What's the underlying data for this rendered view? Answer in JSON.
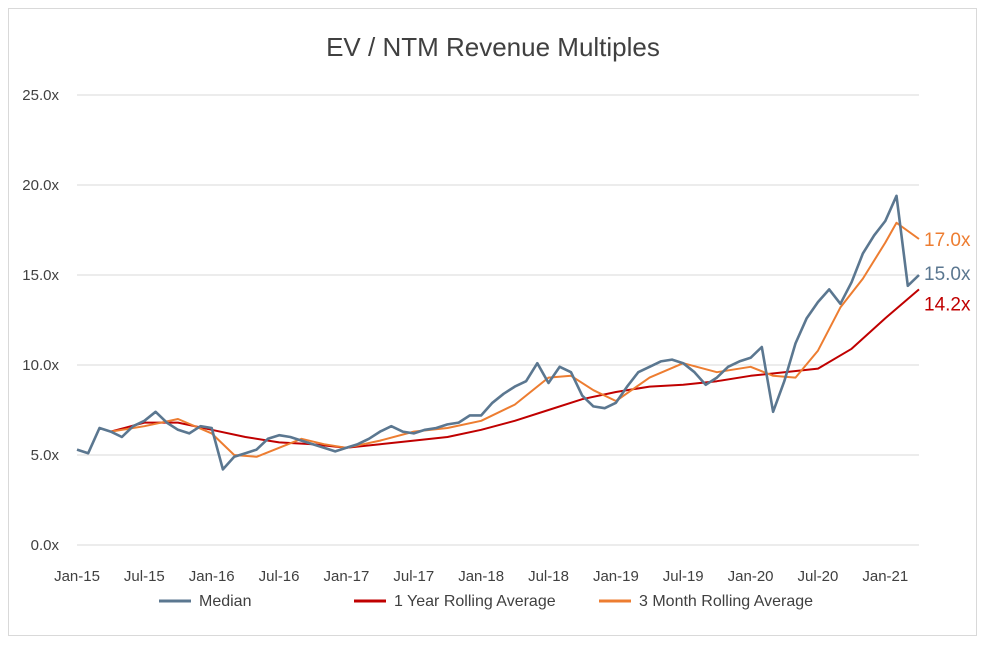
{
  "chart_data": {
    "type": "line",
    "title": "EV / NTM Revenue Multiples",
    "xlabel": "",
    "ylabel": "",
    "ylim": [
      0,
      25
    ],
    "yticks": [
      "0.0x",
      "5.0x",
      "10.0x",
      "15.0x",
      "20.0x",
      "25.0x"
    ],
    "ytick_values": [
      0,
      5,
      10,
      15,
      20,
      25
    ],
    "xticks": [
      "Jan-15",
      "Jul-15",
      "Jan-16",
      "Jul-16",
      "Jan-17",
      "Jul-17",
      "Jan-18",
      "Jul-18",
      "Jan-19",
      "Jul-19",
      "Jan-20",
      "Jul-20",
      "Jan-21"
    ],
    "xtick_dates": [
      "2015-01",
      "2015-07",
      "2016-01",
      "2016-07",
      "2017-01",
      "2017-07",
      "2018-01",
      "2018-07",
      "2019-01",
      "2019-07",
      "2020-01",
      "2020-07",
      "2021-01"
    ],
    "xlim": [
      "2015-01",
      "2021-04"
    ],
    "grid": "horizontal",
    "legend_position": "bottom",
    "series": [
      {
        "name": "Median",
        "color": "#5b7790",
        "end_label": "15.0x",
        "points": [
          [
            "2015-01",
            5.3
          ],
          [
            "2015-02",
            5.1
          ],
          [
            "2015-03",
            6.5
          ],
          [
            "2015-04",
            6.3
          ],
          [
            "2015-05",
            6.0
          ],
          [
            "2015-06",
            6.6
          ],
          [
            "2015-07",
            6.9
          ],
          [
            "2015-08",
            7.4
          ],
          [
            "2015-09",
            6.8
          ],
          [
            "2015-10",
            6.4
          ],
          [
            "2015-11",
            6.2
          ],
          [
            "2015-12",
            6.6
          ],
          [
            "2016-01",
            6.5
          ],
          [
            "2016-02",
            4.2
          ],
          [
            "2016-03",
            4.9
          ],
          [
            "2016-04",
            5.1
          ],
          [
            "2016-05",
            5.3
          ],
          [
            "2016-06",
            5.9
          ],
          [
            "2016-07",
            6.1
          ],
          [
            "2016-08",
            6.0
          ],
          [
            "2016-09",
            5.8
          ],
          [
            "2016-10",
            5.6
          ],
          [
            "2016-11",
            5.4
          ],
          [
            "2016-12",
            5.2
          ],
          [
            "2017-01",
            5.4
          ],
          [
            "2017-02",
            5.6
          ],
          [
            "2017-03",
            5.9
          ],
          [
            "2017-04",
            6.3
          ],
          [
            "2017-05",
            6.6
          ],
          [
            "2017-06",
            6.3
          ],
          [
            "2017-07",
            6.2
          ],
          [
            "2017-08",
            6.4
          ],
          [
            "2017-09",
            6.5
          ],
          [
            "2017-10",
            6.7
          ],
          [
            "2017-11",
            6.8
          ],
          [
            "2017-12",
            7.2
          ],
          [
            "2018-01",
            7.2
          ],
          [
            "2018-02",
            7.9
          ],
          [
            "2018-03",
            8.4
          ],
          [
            "2018-04",
            8.8
          ],
          [
            "2018-05",
            9.1
          ],
          [
            "2018-06",
            10.1
          ],
          [
            "2018-07",
            9.0
          ],
          [
            "2018-08",
            9.9
          ],
          [
            "2018-09",
            9.6
          ],
          [
            "2018-10",
            8.3
          ],
          [
            "2018-11",
            7.7
          ],
          [
            "2018-12",
            7.6
          ],
          [
            "2019-01",
            7.9
          ],
          [
            "2019-02",
            8.8
          ],
          [
            "2019-03",
            9.6
          ],
          [
            "2019-04",
            9.9
          ],
          [
            "2019-05",
            10.2
          ],
          [
            "2019-06",
            10.3
          ],
          [
            "2019-07",
            10.1
          ],
          [
            "2019-08",
            9.6
          ],
          [
            "2019-09",
            8.9
          ],
          [
            "2019-10",
            9.3
          ],
          [
            "2019-11",
            9.9
          ],
          [
            "2019-12",
            10.2
          ],
          [
            "2020-01",
            10.4
          ],
          [
            "2020-02",
            11.0
          ],
          [
            "2020-03",
            7.4
          ],
          [
            "2020-04",
            9.1
          ],
          [
            "2020-05",
            11.2
          ],
          [
            "2020-06",
            12.6
          ],
          [
            "2020-07",
            13.5
          ],
          [
            "2020-08",
            14.2
          ],
          [
            "2020-09",
            13.4
          ],
          [
            "2020-10",
            14.6
          ],
          [
            "2020-11",
            16.2
          ],
          [
            "2020-12",
            17.2
          ],
          [
            "2021-01",
            18.0
          ],
          [
            "2021-02",
            19.4
          ],
          [
            "2021-03",
            14.4
          ],
          [
            "2021-04",
            15.0
          ]
        ]
      },
      {
        "name": "1 Year Rolling Average",
        "color": "#c00000",
        "end_label": "14.2x",
        "points": [
          [
            "2015-04",
            6.3
          ],
          [
            "2015-07",
            6.8
          ],
          [
            "2015-10",
            6.8
          ],
          [
            "2016-01",
            6.4
          ],
          [
            "2016-04",
            6.0
          ],
          [
            "2016-07",
            5.7
          ],
          [
            "2016-10",
            5.6
          ],
          [
            "2017-01",
            5.4
          ],
          [
            "2017-04",
            5.6
          ],
          [
            "2017-07",
            5.8
          ],
          [
            "2017-10",
            6.0
          ],
          [
            "2018-01",
            6.4
          ],
          [
            "2018-04",
            6.9
          ],
          [
            "2018-07",
            7.5
          ],
          [
            "2018-10",
            8.1
          ],
          [
            "2019-01",
            8.5
          ],
          [
            "2019-04",
            8.8
          ],
          [
            "2019-07",
            8.9
          ],
          [
            "2019-10",
            9.1
          ],
          [
            "2020-01",
            9.4
          ],
          [
            "2020-04",
            9.6
          ],
          [
            "2020-07",
            9.8
          ],
          [
            "2020-10",
            10.9
          ],
          [
            "2021-01",
            12.6
          ],
          [
            "2021-04",
            14.2
          ]
        ]
      },
      {
        "name": "3 Month Rolling Average",
        "color": "#ed7d31",
        "end_label": "17.0x",
        "points": [
          [
            "2015-04",
            6.3
          ],
          [
            "2015-07",
            6.6
          ],
          [
            "2015-10",
            7.0
          ],
          [
            "2016-01",
            6.2
          ],
          [
            "2016-03",
            5.0
          ],
          [
            "2016-05",
            4.9
          ],
          [
            "2016-07",
            5.4
          ],
          [
            "2016-09",
            5.9
          ],
          [
            "2016-11",
            5.6
          ],
          [
            "2017-01",
            5.4
          ],
          [
            "2017-04",
            5.8
          ],
          [
            "2017-07",
            6.3
          ],
          [
            "2017-10",
            6.5
          ],
          [
            "2018-01",
            6.9
          ],
          [
            "2018-04",
            7.8
          ],
          [
            "2018-07",
            9.3
          ],
          [
            "2018-09",
            9.4
          ],
          [
            "2018-11",
            8.6
          ],
          [
            "2019-01",
            8.0
          ],
          [
            "2019-04",
            9.3
          ],
          [
            "2019-07",
            10.1
          ],
          [
            "2019-10",
            9.6
          ],
          [
            "2020-01",
            9.9
          ],
          [
            "2020-03",
            9.4
          ],
          [
            "2020-05",
            9.3
          ],
          [
            "2020-07",
            10.8
          ],
          [
            "2020-09",
            13.2
          ],
          [
            "2020-11",
            14.8
          ],
          [
            "2021-01",
            16.8
          ],
          [
            "2021-02",
            17.9
          ],
          [
            "2021-04",
            17.0
          ]
        ]
      }
    ]
  }
}
